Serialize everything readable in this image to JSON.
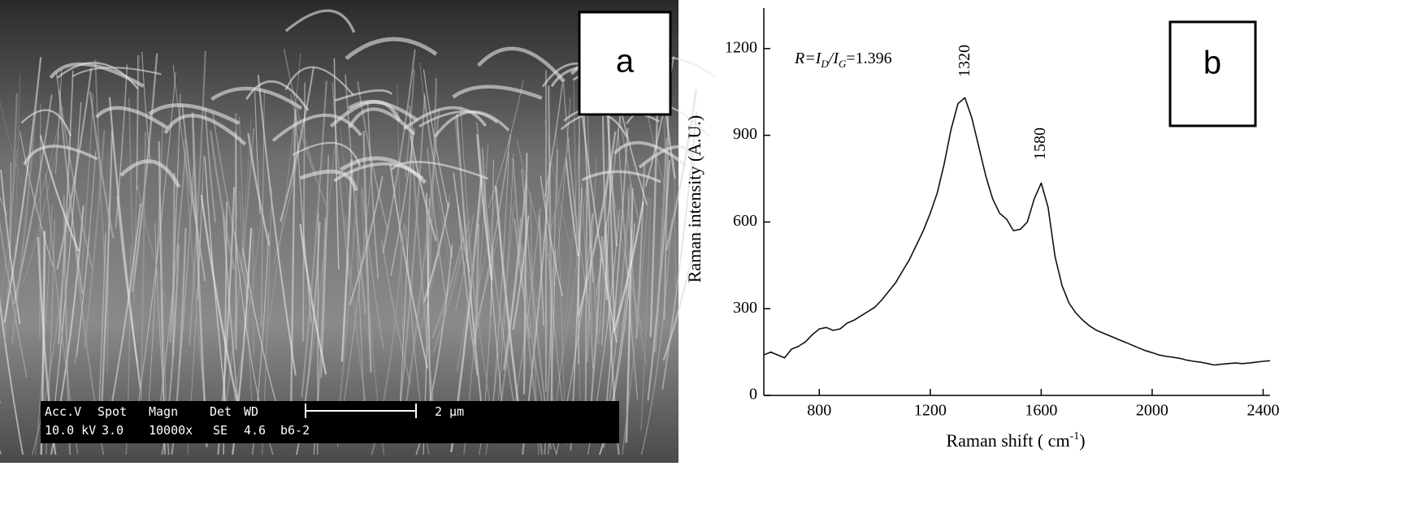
{
  "panel_a": {
    "label": "a",
    "info_bar": {
      "header": [
        "Acc.V",
        "Spot",
        "Magn",
        "Det",
        "WD"
      ],
      "values": [
        "10.0 kV",
        "3.0",
        "10000x",
        "SE",
        "4.6",
        "b6-2"
      ],
      "scale": "2 µm"
    }
  },
  "chart_data": {
    "type": "line",
    "label": "b",
    "annotation": [
      "R",
      "=I",
      "D",
      "/I",
      "G",
      "=1.396"
    ],
    "peak_labels": [
      "1320",
      "1580"
    ],
    "x_label": [
      "Raman shift ( cm",
      "-1",
      ")"
    ],
    "y_label": "Raman intensity (A.U.)",
    "x": [
      600,
      625,
      650,
      675,
      700,
      725,
      750,
      775,
      800,
      825,
      850,
      875,
      900,
      925,
      950,
      975,
      1000,
      1025,
      1050,
      1075,
      1100,
      1125,
      1150,
      1175,
      1200,
      1225,
      1250,
      1275,
      1300,
      1325,
      1350,
      1375,
      1400,
      1425,
      1450,
      1475,
      1500,
      1525,
      1550,
      1575,
      1600,
      1625,
      1650,
      1675,
      1700,
      1725,
      1750,
      1775,
      1800,
      1825,
      1850,
      1875,
      1900,
      1925,
      1950,
      1975,
      2000,
      2025,
      2050,
      2075,
      2100,
      2125,
      2150,
      2175,
      2200,
      2225,
      2250,
      2275,
      2300,
      2325,
      2350,
      2375,
      2400,
      2425
    ],
    "series": [
      {
        "color": "#111111",
        "values": [
          140,
          150,
          140,
          130,
          160,
          170,
          185,
          210,
          230,
          235,
          225,
          230,
          250,
          260,
          275,
          290,
          305,
          330,
          360,
          390,
          430,
          470,
          520,
          570,
          630,
          700,
          800,
          920,
          1010,
          1030,
          960,
          860,
          760,
          680,
          630,
          610,
          570,
          575,
          600,
          680,
          735,
          650,
          480,
          380,
          320,
          285,
          260,
          240,
          225,
          215,
          205,
          195,
          185,
          175,
          165,
          155,
          148,
          140,
          135,
          132,
          128,
          122,
          118,
          115,
          110,
          105,
          108,
          110,
          112,
          110,
          112,
          115,
          118,
          120
        ]
      }
    ],
    "xlim": [
      600,
      2425
    ],
    "ylim": [
      0,
      1340
    ],
    "xticks": [
      800,
      1200,
      1600,
      2000,
      2400
    ],
    "yticks": [
      0,
      300,
      600,
      900,
      1200
    ]
  }
}
